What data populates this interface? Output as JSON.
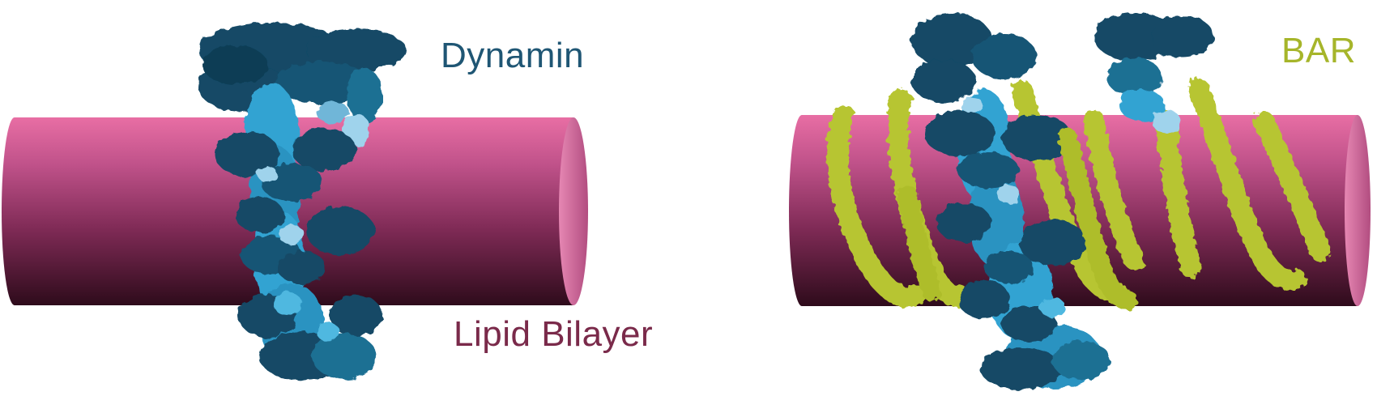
{
  "labels": {
    "dynamin": "Dynamin",
    "lipid_bilayer": "Lipid Bilayer",
    "bar": "BAR"
  },
  "panels": [
    {
      "name": "left-panel",
      "components": [
        "lipid bilayer tube",
        "dynamin"
      ]
    },
    {
      "name": "right-panel",
      "components": [
        "lipid bilayer tube",
        "dynamin",
        "BAR"
      ]
    }
  ],
  "colors": {
    "membrane_top": "#e06a9e",
    "membrane_mid": "#b24a7a",
    "membrane_bottom": "#3a0f22",
    "membrane_end": "#d77aa6",
    "dynamin_dark": "#124a66",
    "dynamin_mid": "#1f6f93",
    "dynamin_light": "#32a3d2",
    "dynamin_pale": "#9fd3ec",
    "bar": "#b7c532",
    "bar_dark": "#8a9a1c",
    "dynamin_label": "#1f5674",
    "lipid_label": "#7a2a4a",
    "bar_label": "#a6b52a"
  }
}
